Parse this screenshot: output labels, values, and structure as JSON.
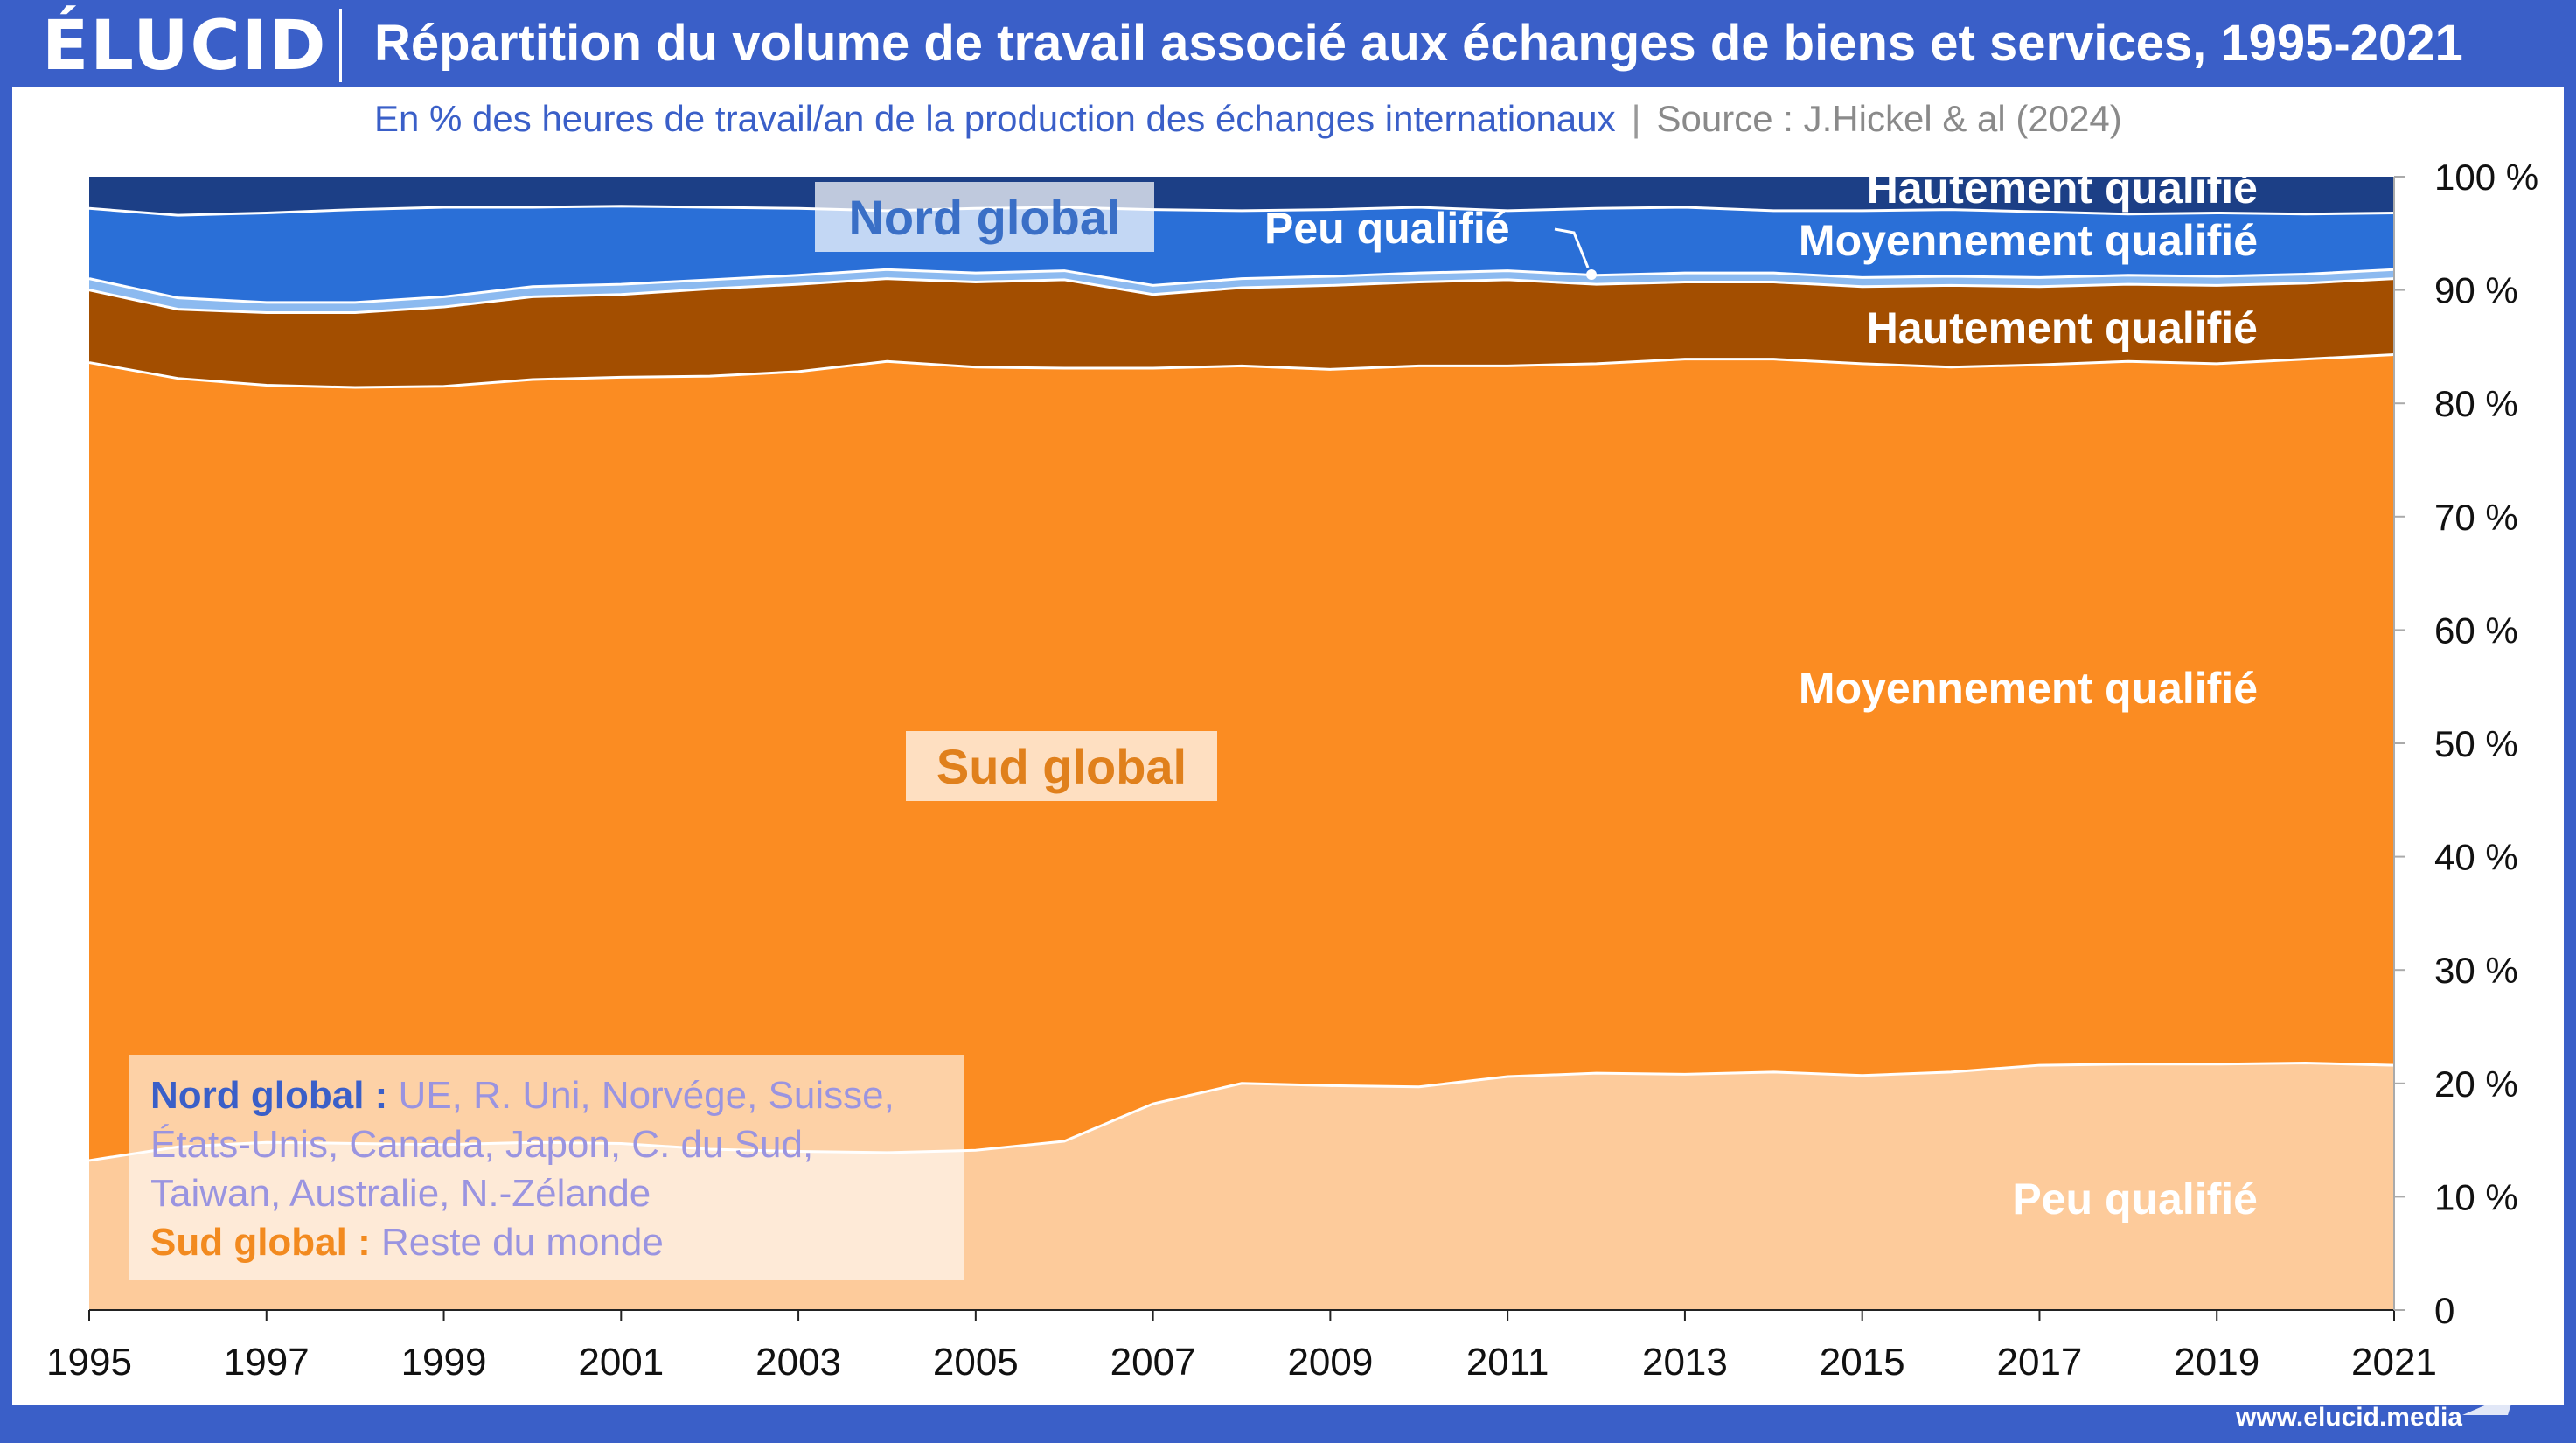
{
  "header": {
    "logo": "ÉLUCID",
    "title": "Répartition du volume de travail associé aux échanges de biens et services, 1995-2021"
  },
  "subtitle": {
    "main": "En % des heures de travail/an de la production des échanges internationaux",
    "separator": "|",
    "source": "Source : J.Hickel & al (2024)"
  },
  "footer": {
    "url": "www.elucid.media"
  },
  "note": {
    "nord_label": "Nord global :",
    "nord_line1": "UE, R. Uni, Norvége, Suisse,",
    "nord_line2": "États-Unis, Canada, Japon, C. du Sud,",
    "nord_line3": "Taiwan, Australie, N.-Zélande",
    "sud_label": "Sud global :",
    "sud_text": "Reste du monde"
  },
  "colors": {
    "sud_low": "#fdcb9b",
    "sud_mid": "#fb8c22",
    "sud_high": "#a34e00",
    "nord_low": "#8cbaf0",
    "nord_mid": "#2a6fd7",
    "nord_high": "#1c3f86",
    "separator": "#ffffff"
  },
  "chart_data": {
    "type": "area",
    "stacked": true,
    "x": [
      1995,
      1996,
      1997,
      1998,
      1999,
      2000,
      2001,
      2002,
      2003,
      2004,
      2005,
      2006,
      2007,
      2008,
      2009,
      2010,
      2011,
      2012,
      2013,
      2014,
      2015,
      2016,
      2017,
      2018,
      2019,
      2020,
      2021
    ],
    "xticks": [
      1995,
      1997,
      1999,
      2001,
      2003,
      2005,
      2007,
      2009,
      2011,
      2013,
      2015,
      2017,
      2019,
      2021
    ],
    "ylim": [
      0,
      100
    ],
    "yticks": [
      0,
      10,
      20,
      30,
      40,
      50,
      60,
      70,
      80,
      90,
      100
    ],
    "ytick_labels": [
      "0",
      "10 %",
      "20 %",
      "30 %",
      "40 %",
      "50 %",
      "60 %",
      "70 %",
      "80 %",
      "90 %",
      "100 %"
    ],
    "grid": false,
    "group_labels": [
      "Nord global",
      "Sud global"
    ],
    "series": [
      {
        "name": "Peu qualifié",
        "group": "Sud global",
        "color": "#fdcb9b",
        "values": [
          13.2,
          14.4,
          14.8,
          14.7,
          14.6,
          14.8,
          14.7,
          14.2,
          14.0,
          13.9,
          14.1,
          14.9,
          18.2,
          20.0,
          19.8,
          19.7,
          20.6,
          20.9,
          20.8,
          21.0,
          20.7,
          21.0,
          21.6,
          21.7,
          21.7,
          21.8,
          21.6
        ]
      },
      {
        "name": "Moyennement qualifié",
        "group": "Sud global",
        "color": "#fb8c22",
        "values": [
          70.4,
          67.8,
          66.8,
          66.7,
          66.9,
          67.3,
          67.6,
          68.2,
          68.8,
          69.8,
          69.1,
          68.2,
          64.9,
          63.3,
          63.2,
          63.6,
          62.7,
          62.6,
          63.1,
          62.9,
          62.8,
          62.2,
          61.8,
          62.0,
          61.8,
          62.1,
          62.7
        ]
      },
      {
        "name": "Hautement qualifié",
        "group": "Sud global",
        "color": "#a34e00",
        "values": [
          6.4,
          6.1,
          6.4,
          6.6,
          7.0,
          7.3,
          7.3,
          7.7,
          7.7,
          7.3,
          7.5,
          7.8,
          6.5,
          6.9,
          7.4,
          7.4,
          7.6,
          7.0,
          6.8,
          6.8,
          6.8,
          7.2,
          6.9,
          6.8,
          6.9,
          6.7,
          6.7
        ]
      },
      {
        "name": "Peu qualifié",
        "group": "Nord global",
        "color": "#8cbaf0",
        "values": [
          1.0,
          1.0,
          0.9,
          0.9,
          0.9,
          0.9,
          0.9,
          0.8,
          0.8,
          0.8,
          0.8,
          0.8,
          0.8,
          0.8,
          0.8,
          0.8,
          0.8,
          0.8,
          0.8,
          0.8,
          0.8,
          0.8,
          0.8,
          0.8,
          0.8,
          0.8,
          0.8
        ]
      },
      {
        "name": "Moyennement qualifié",
        "group": "Nord global",
        "color": "#2a6fd7",
        "values": [
          6.2,
          7.3,
          7.9,
          8.2,
          7.9,
          7.0,
          6.9,
          6.4,
          5.9,
          5.2,
          5.7,
          5.6,
          6.7,
          6.0,
          5.9,
          5.8,
          5.3,
          5.9,
          5.8,
          5.5,
          5.9,
          5.9,
          5.8,
          5.4,
          5.6,
          5.3,
          5.0
        ]
      },
      {
        "name": "Hautement qualifié",
        "group": "Nord global",
        "color": "#1c3f86",
        "values": [
          2.8,
          3.4,
          3.2,
          2.9,
          2.7,
          2.7,
          2.6,
          2.7,
          2.8,
          3.0,
          2.8,
          2.7,
          2.9,
          3.0,
          2.9,
          2.7,
          3.0,
          2.8,
          2.7,
          3.0,
          3.0,
          2.9,
          3.1,
          3.3,
          3.2,
          3.3,
          3.2
        ]
      }
    ]
  }
}
